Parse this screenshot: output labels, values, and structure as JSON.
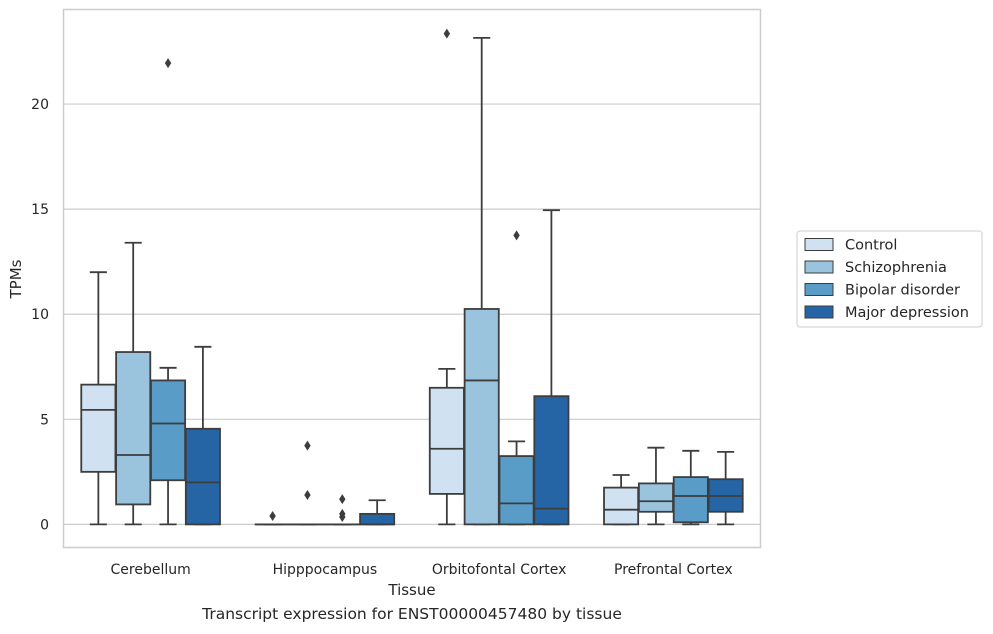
{
  "caption": "Transcript expression for ENST00000457480 by tissue",
  "chart_data": {
    "type": "box",
    "xlabel": "Tissue",
    "ylabel": "TPMs",
    "ylim": [
      -1.1,
      24.5
    ],
    "yticks": [
      0,
      5,
      10,
      15,
      20
    ],
    "grid": true,
    "legend_position": "right",
    "categories": [
      "Cerebellum",
      "Hipppocampus",
      "Orbitofontal Cortex",
      "Prefrontal Cortex"
    ],
    "series": [
      {
        "name": "Control",
        "color": "#d0e1f2",
        "boxes": [
          {
            "whislo": 0,
            "q1": 2.5,
            "med": 5.45,
            "q3": 6.65,
            "whishi": 12.0,
            "fliers": []
          },
          {
            "whislo": 0,
            "q1": 0,
            "med": 0,
            "q3": 0,
            "whishi": 0,
            "fliers": [
              0.4
            ]
          },
          {
            "whislo": 0,
            "q1": 1.45,
            "med": 3.6,
            "q3": 6.5,
            "whishi": 7.4,
            "fliers": [
              23.35
            ]
          },
          {
            "whislo": 0,
            "q1": 0,
            "med": 0.7,
            "q3": 1.75,
            "whishi": 2.35,
            "fliers": []
          }
        ]
      },
      {
        "name": "Schizophrenia",
        "color": "#9ac4de",
        "boxes": [
          {
            "whislo": 0,
            "q1": 0.95,
            "med": 3.3,
            "q3": 8.2,
            "whishi": 13.4,
            "fliers": []
          },
          {
            "whislo": 0,
            "q1": 0,
            "med": 0,
            "q3": 0,
            "whishi": 0,
            "fliers": [
              1.4,
              3.75
            ]
          },
          {
            "whislo": 0,
            "q1": 0,
            "med": 6.85,
            "q3": 10.25,
            "whishi": 23.15,
            "fliers": []
          },
          {
            "whislo": 0,
            "q1": 0.6,
            "med": 1.1,
            "q3": 1.95,
            "whishi": 3.65,
            "fliers": []
          }
        ]
      },
      {
        "name": "Bipolar disorder",
        "color": "#5a9cc8",
        "boxes": [
          {
            "whislo": 0,
            "q1": 2.1,
            "med": 4.8,
            "q3": 6.85,
            "whishi": 7.45,
            "fliers": [
              21.95
            ]
          },
          {
            "whislo": 0,
            "q1": 0,
            "med": 0,
            "q3": 0,
            "whishi": 0,
            "fliers": [
              0.35,
              0.5,
              1.2
            ]
          },
          {
            "whislo": 0,
            "q1": 0,
            "med": 1.0,
            "q3": 3.25,
            "whishi": 3.95,
            "fliers": [
              13.75
            ]
          },
          {
            "whislo": 0,
            "q1": 0.1,
            "med": 1.35,
            "q3": 2.25,
            "whishi": 3.5,
            "fliers": []
          }
        ]
      },
      {
        "name": "Major depression",
        "color": "#2565a6",
        "boxes": [
          {
            "whislo": 0,
            "q1": 0,
            "med": 2.0,
            "q3": 4.55,
            "whishi": 8.45,
            "fliers": []
          },
          {
            "whislo": 0,
            "q1": 0,
            "med": 0,
            "q3": 0.5,
            "whishi": 1.15,
            "fliers": []
          },
          {
            "whislo": 0,
            "q1": 0,
            "med": 0.75,
            "q3": 6.1,
            "whishi": 14.95,
            "fliers": []
          },
          {
            "whislo": 0,
            "q1": 0.6,
            "med": 1.35,
            "q3": 2.15,
            "whishi": 3.45,
            "fliers": []
          }
        ]
      }
    ]
  }
}
